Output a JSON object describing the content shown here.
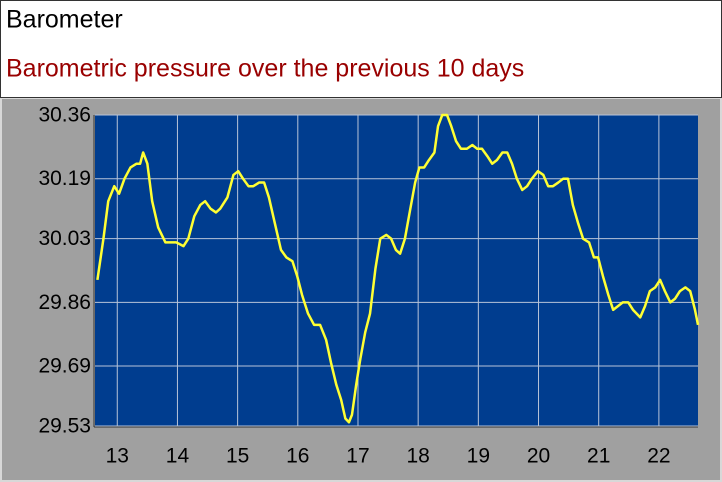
{
  "chart_data": {
    "type": "line",
    "title": "Barometer",
    "subtitle": "Barometric pressure over the previous 10 days",
    "color": "#ffff33",
    "grid": true,
    "x": [
      12.67,
      12.77,
      12.85,
      12.95,
      13.03,
      13.12,
      13.22,
      13.32,
      13.38,
      13.43,
      13.5,
      13.58,
      13.68,
      13.8,
      13.88,
      13.98,
      14.1,
      14.18,
      14.28,
      14.38,
      14.46,
      14.55,
      14.64,
      14.71,
      14.83,
      14.93,
      15.01,
      15.09,
      15.18,
      15.26,
      15.36,
      15.44,
      15.52,
      15.62,
      15.72,
      15.81,
      15.91,
      15.99,
      16.07,
      16.17,
      16.27,
      16.37,
      16.47,
      16.55,
      16.64,
      16.72,
      16.79,
      16.85,
      16.9,
      16.97,
      17.04,
      17.12,
      17.2,
      17.29,
      17.37,
      17.47,
      17.55,
      17.63,
      17.7,
      17.78,
      17.87,
      17.95,
      18.02,
      18.1,
      18.18,
      18.27,
      18.33,
      18.4,
      18.48,
      18.55,
      18.63,
      18.71,
      18.81,
      18.9,
      18.98,
      19.06,
      19.15,
      19.23,
      19.31,
      19.4,
      19.48,
      19.56,
      19.64,
      19.73,
      19.81,
      19.89,
      19.99,
      20.08,
      20.16,
      20.24,
      20.33,
      20.41,
      20.49,
      20.57,
      20.66,
      20.74,
      20.84,
      20.92,
      20.99,
      21.07,
      21.16,
      21.24,
      21.32,
      21.4,
      21.49,
      21.57,
      21.69,
      21.77,
      21.85,
      21.94,
      22.02,
      22.1,
      22.19,
      22.27,
      22.35,
      22.44,
      22.52,
      22.6,
      22.65
    ],
    "values": [
      29.92,
      30.03,
      30.13,
      30.17,
      30.15,
      30.19,
      30.22,
      30.23,
      30.23,
      30.26,
      30.23,
      30.13,
      30.06,
      30.02,
      30.02,
      30.02,
      30.01,
      30.03,
      30.09,
      30.12,
      30.13,
      30.11,
      30.1,
      30.11,
      30.14,
      30.2,
      30.21,
      30.19,
      30.17,
      30.17,
      30.18,
      30.18,
      30.14,
      30.07,
      30.0,
      29.98,
      29.97,
      29.93,
      29.88,
      29.83,
      29.8,
      29.8,
      29.76,
      29.7,
      29.64,
      29.6,
      29.55,
      29.54,
      29.56,
      29.64,
      29.71,
      29.78,
      29.83,
      29.95,
      30.03,
      30.04,
      30.03,
      30.0,
      29.99,
      30.03,
      30.11,
      30.18,
      30.22,
      30.22,
      30.24,
      30.26,
      30.33,
      30.36,
      30.36,
      30.33,
      30.29,
      30.27,
      30.27,
      30.28,
      30.27,
      30.27,
      30.25,
      30.23,
      30.24,
      30.26,
      30.26,
      30.23,
      30.19,
      30.16,
      30.17,
      30.19,
      30.21,
      30.2,
      30.17,
      30.17,
      30.18,
      30.19,
      30.19,
      30.12,
      30.07,
      30.03,
      30.02,
      29.98,
      29.98,
      29.93,
      29.88,
      29.84,
      29.85,
      29.86,
      29.86,
      29.84,
      29.82,
      29.85,
      29.89,
      29.9,
      29.92,
      29.89,
      29.86,
      29.87,
      29.89,
      29.9,
      29.89,
      29.84,
      29.8
    ],
    "xlim": [
      12.63,
      22.65
    ],
    "xticks": [
      13,
      14,
      15,
      16,
      17,
      18,
      19,
      20,
      21,
      22
    ],
    "ylim": [
      29.53,
      30.36
    ],
    "yticks": [
      29.53,
      29.69,
      29.86,
      30.03,
      30.19,
      30.36
    ]
  }
}
